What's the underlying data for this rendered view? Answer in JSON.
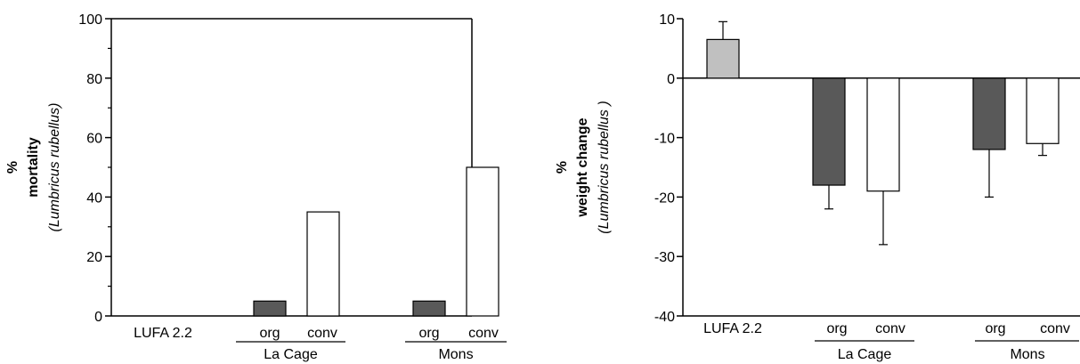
{
  "chart_data": [
    {
      "type": "bar",
      "ylabel_lines": [
        "%",
        "mortality",
        "(Lumbricus rubellus)"
      ],
      "ylim": [
        0,
        100
      ],
      "yticks": [
        0,
        20,
        40,
        60,
        80,
        100
      ],
      "bars": [
        {
          "label": "LUFA 2.2",
          "value": 0,
          "color": "#c0c0c0"
        },
        {
          "label": "org",
          "value": 5,
          "color": "#595959"
        },
        {
          "label": "conv",
          "value": 35,
          "color": "#ffffff"
        },
        {
          "label": "org",
          "value": 5,
          "color": "#595959"
        },
        {
          "label": "conv",
          "value": 50,
          "color": "#ffffff"
        }
      ],
      "groups": [
        "La Cage",
        "Mons"
      ]
    },
    {
      "type": "bar",
      "ylabel_lines": [
        "%",
        "weight change",
        "(Lumbricus rubellus )"
      ],
      "ylim": [
        -40,
        10
      ],
      "yticks": [
        10,
        0,
        -10,
        -20,
        -30,
        -40
      ],
      "bars": [
        {
          "label": "LUFA 2.2",
          "value": 6.5,
          "error": 3.0,
          "color": "#c0c0c0"
        },
        {
          "label": "org",
          "value": -18,
          "error": 4.0,
          "color": "#595959"
        },
        {
          "label": "conv",
          "value": -19,
          "error": 9.0,
          "color": "#ffffff"
        },
        {
          "label": "org",
          "value": -12,
          "error": 8.0,
          "color": "#595959"
        },
        {
          "label": "conv",
          "value": -11,
          "error": 2.0,
          "color": "#ffffff"
        }
      ],
      "groups": [
        "La Cage",
        "Mons"
      ]
    }
  ]
}
